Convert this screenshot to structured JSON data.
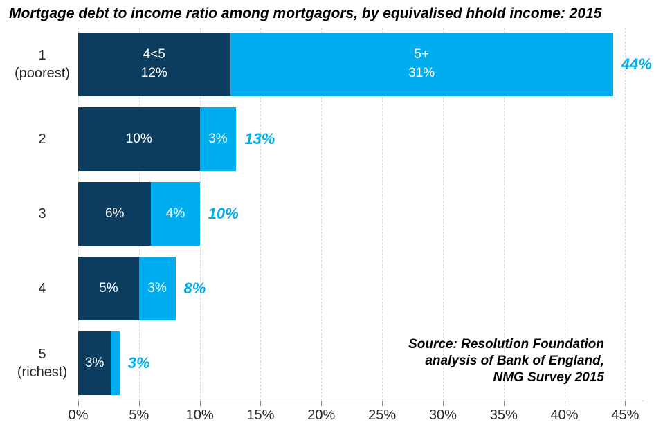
{
  "chart_data": {
    "type": "bar",
    "orientation": "horizontal",
    "stacked": true,
    "title": "Mortgage debt to income ratio among mortgagors, by equivalised hhold income: 2015",
    "categories": [
      "1 (poorest)",
      "2",
      "3",
      "4",
      "5 (richest)"
    ],
    "category_lines": [
      [
        "1",
        "(poorest)"
      ],
      [
        "2"
      ],
      [
        "3"
      ],
      [
        "4"
      ],
      [
        "5",
        "(richest)"
      ]
    ],
    "series": [
      {
        "name": "4<5",
        "color": "#0d3d5e",
        "values": [
          12.5,
          10,
          6,
          5,
          2.7
        ],
        "label_values": [
          12,
          10,
          6,
          5,
          3
        ],
        "labels": [
          [
            "4<5",
            "12%"
          ],
          [
            "10%"
          ],
          [
            "6%"
          ],
          [
            "5%"
          ],
          [
            "3%"
          ]
        ]
      },
      {
        "name": "5+",
        "color": "#00aeef",
        "values": [
          31.5,
          3,
          4,
          3,
          0.7
        ],
        "label_values": [
          31,
          3,
          4,
          3,
          null
        ],
        "labels": [
          [
            "5+",
            "31%"
          ],
          [
            "3%"
          ],
          [
            "4%"
          ],
          [
            "3%"
          ],
          []
        ]
      }
    ],
    "totals": [
      44,
      13,
      10,
      8,
      3
    ],
    "total_labels": [
      "44%",
      "13%",
      "10%",
      "8%",
      "3%"
    ],
    "xlim": [
      0,
      45
    ],
    "x_tick_values": [
      0,
      5,
      10,
      15,
      20,
      25,
      30,
      35,
      40,
      45
    ],
    "x_tick_labels": [
      "0%",
      "5%",
      "10%",
      "15%",
      "20%",
      "25%",
      "30%",
      "35%",
      "40%",
      "45%"
    ],
    "grid": {
      "vertical": true,
      "style": "dashed",
      "color": "#d9d9d9"
    },
    "legend": "none"
  },
  "source": {
    "lines": [
      "Source: Resolution Foundation",
      "analysis of Bank of England,",
      "NMG Survey 2015"
    ]
  },
  "colors": {
    "series_dark": "#0d3d5e",
    "series_light": "#00aeef",
    "total_label": "#00aeef",
    "grid": "#d9d9d9",
    "axis_line": "#bfbfbf",
    "tick": "#7f7f7f",
    "axis_text": "#262626",
    "title_text": "#000000"
  }
}
